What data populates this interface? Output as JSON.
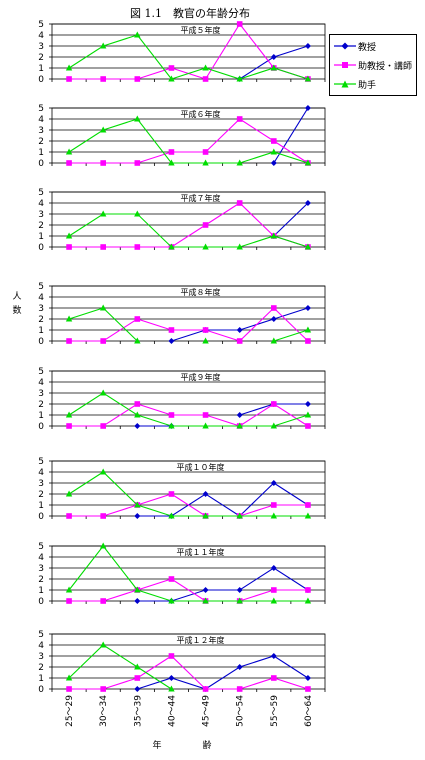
{
  "title": "図 1.1　教官の年齢分布",
  "colors": {
    "professor": "#0000cc",
    "assistant_professor": "#ff00ff",
    "assistant": "#00dd00"
  },
  "legend": {
    "professor": "教授",
    "assistant_professor": "助教授・講師",
    "assistant": "助手"
  },
  "ylabel": "人　数",
  "xlabel": "年　齢",
  "chart_data": [
    {
      "type": "line",
      "title": "平成５年度",
      "ylim": [
        0,
        5
      ],
      "grid": true,
      "categories": [
        "25～29",
        "30～34",
        "35～39",
        "40～44",
        "45～49",
        "50～54",
        "55～59",
        "60～64"
      ],
      "series": [
        {
          "name": "教授",
          "values": [
            null,
            null,
            null,
            null,
            null,
            0,
            2,
            3
          ]
        },
        {
          "name": "助教授・講師",
          "values": [
            0,
            0,
            0,
            1,
            0,
            5,
            1,
            0
          ]
        },
        {
          "name": "助手",
          "values": [
            1,
            3,
            4,
            0,
            1,
            0,
            1,
            0
          ]
        }
      ]
    },
    {
      "type": "line",
      "title": "平成６年度",
      "ylim": [
        0,
        5
      ],
      "grid": true,
      "categories": [
        "25～29",
        "30～34",
        "35～39",
        "40～44",
        "45～49",
        "50～54",
        "55～59",
        "60～64"
      ],
      "series": [
        {
          "name": "教授",
          "values": [
            null,
            null,
            null,
            null,
            null,
            null,
            0,
            5
          ]
        },
        {
          "name": "助教授・講師",
          "values": [
            0,
            0,
            0,
            1,
            1,
            4,
            2,
            0
          ]
        },
        {
          "name": "助手",
          "values": [
            1,
            3,
            4,
            0,
            0,
            0,
            1,
            0
          ]
        }
      ]
    },
    {
      "type": "line",
      "title": "平成７年度",
      "ylim": [
        0,
        5
      ],
      "grid": true,
      "categories": [
        "25～29",
        "30～34",
        "35～39",
        "40～44",
        "45～49",
        "50～54",
        "55～59",
        "60～64"
      ],
      "series": [
        {
          "name": "教授",
          "values": [
            null,
            null,
            null,
            null,
            null,
            null,
            1,
            4
          ]
        },
        {
          "name": "助教授・講師",
          "values": [
            0,
            0,
            0,
            0,
            2,
            4,
            1,
            0
          ]
        },
        {
          "name": "助手",
          "values": [
            1,
            3,
            3,
            0,
            0,
            0,
            1,
            0
          ]
        }
      ]
    },
    {
      "type": "line",
      "title": "平成８年度",
      "ylim": [
        0,
        5
      ],
      "grid": true,
      "categories": [
        "25～29",
        "30～34",
        "35～39",
        "40～44",
        "45～49",
        "50～54",
        "55～59",
        "60～64"
      ],
      "series": [
        {
          "name": "教授",
          "values": [
            null,
            null,
            null,
            0,
            1,
            1,
            2,
            3
          ]
        },
        {
          "name": "助教授・講師",
          "values": [
            0,
            0,
            2,
            1,
            1,
            0,
            3,
            0
          ]
        },
        {
          "name": "助手",
          "values": [
            2,
            3,
            0,
            null,
            0,
            null,
            0,
            1
          ]
        }
      ]
    },
    {
      "type": "line",
      "title": "平成９年度",
      "ylim": [
        0,
        5
      ],
      "grid": true,
      "categories": [
        "25～29",
        "30～34",
        "35～39",
        "40～44",
        "45～49",
        "50～54",
        "55～59",
        "60～64"
      ],
      "series": [
        {
          "name": "教授",
          "values": [
            null,
            null,
            0,
            0,
            null,
            1,
            2,
            2
          ]
        },
        {
          "name": "助教授・講師",
          "values": [
            0,
            0,
            2,
            1,
            1,
            0,
            2,
            0
          ]
        },
        {
          "name": "助手",
          "values": [
            1,
            3,
            1,
            0,
            0,
            0,
            0,
            1
          ]
        }
      ]
    },
    {
      "type": "line",
      "title": "平成１０年度",
      "ylim": [
        0,
        5
      ],
      "grid": true,
      "categories": [
        "25～29",
        "30～34",
        "35～39",
        "40～44",
        "45～49",
        "50～54",
        "55～59",
        "60～64"
      ],
      "series": [
        {
          "name": "教授",
          "values": [
            null,
            null,
            0,
            0,
            2,
            0,
            3,
            1
          ]
        },
        {
          "name": "助教授・講師",
          "values": [
            0,
            0,
            1,
            2,
            0,
            0,
            1,
            1
          ]
        },
        {
          "name": "助手",
          "values": [
            2,
            4,
            1,
            0,
            0,
            0,
            0,
            0
          ]
        }
      ]
    },
    {
      "type": "line",
      "title": "平成１１年度",
      "ylim": [
        0,
        5
      ],
      "grid": true,
      "categories": [
        "25～29",
        "30～34",
        "35～39",
        "40～44",
        "45～49",
        "50～54",
        "55～59",
        "60～64"
      ],
      "series": [
        {
          "name": "教授",
          "values": [
            null,
            null,
            0,
            0,
            1,
            1,
            3,
            1
          ]
        },
        {
          "name": "助教授・講師",
          "values": [
            0,
            0,
            1,
            2,
            0,
            0,
            1,
            1
          ]
        },
        {
          "name": "助手",
          "values": [
            1,
            5,
            1,
            0,
            0,
            0,
            0,
            0
          ]
        }
      ]
    },
    {
      "type": "line",
      "title": "平成１２年度",
      "ylim": [
        0,
        5
      ],
      "grid": true,
      "categories": [
        "25～29",
        "30～34",
        "35～39",
        "40～44",
        "45～49",
        "50～54",
        "55～59",
        "60～64"
      ],
      "series": [
        {
          "name": "教授",
          "values": [
            null,
            null,
            0,
            1,
            0,
            2,
            3,
            1
          ]
        },
        {
          "name": "助教授・講師",
          "values": [
            0,
            0,
            1,
            3,
            0,
            0,
            1,
            0
          ]
        },
        {
          "name": "助手",
          "values": [
            1,
            4,
            2,
            0,
            null,
            null,
            null,
            null
          ]
        }
      ]
    }
  ]
}
